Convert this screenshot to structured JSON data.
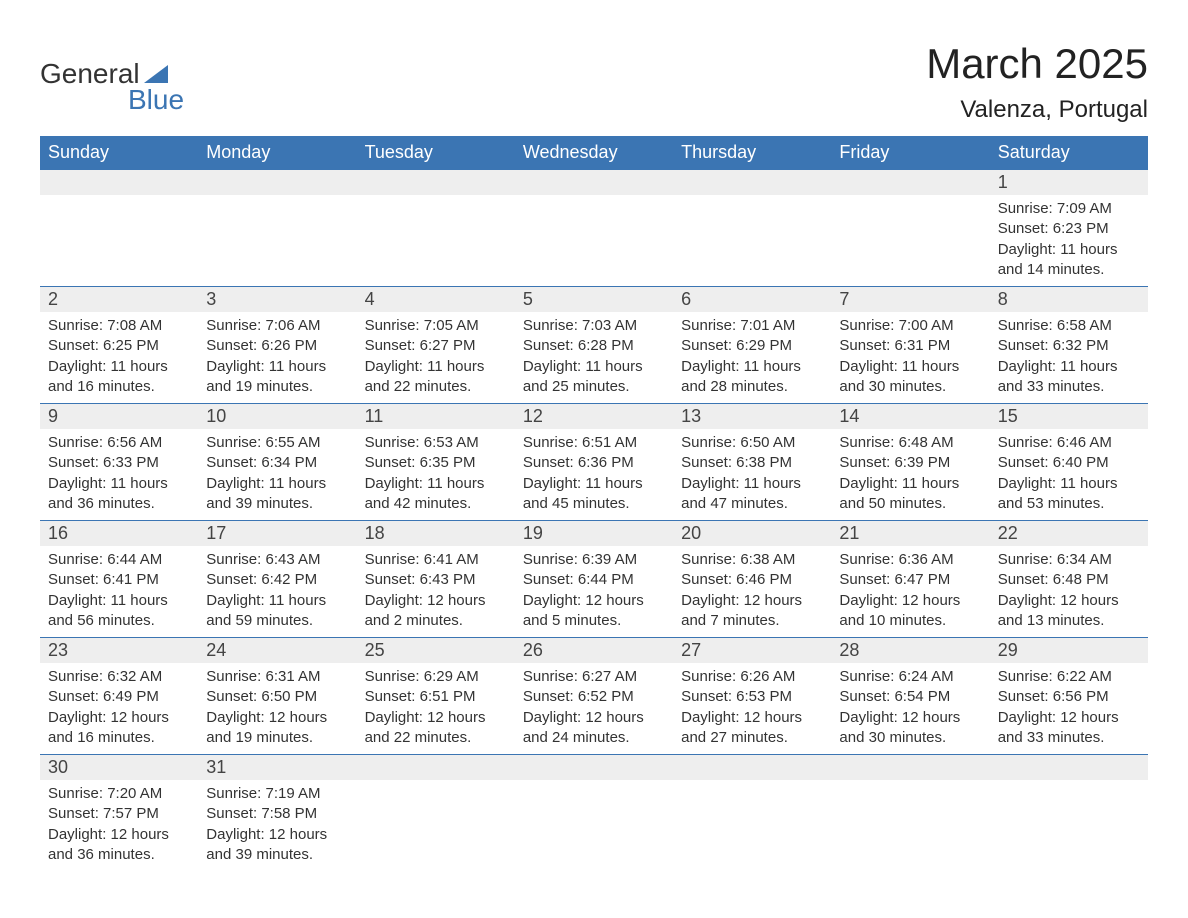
{
  "logo": {
    "word1": "General",
    "word2": "Blue"
  },
  "title": "March 2025",
  "location": "Valenza, Portugal",
  "colors": {
    "header_bg": "#3b75b3",
    "header_text": "#ffffff",
    "daynum_bg": "#eeeeee",
    "border": "#3b75b3",
    "body_text": "#333333",
    "logo_gray": "#333333",
    "logo_blue": "#3b75b3"
  },
  "weekdays": [
    "Sunday",
    "Monday",
    "Tuesday",
    "Wednesday",
    "Thursday",
    "Friday",
    "Saturday"
  ],
  "weeks": [
    [
      null,
      null,
      null,
      null,
      null,
      null,
      {
        "n": "1",
        "sr": "7:09 AM",
        "ss": "6:23 PM",
        "dl": "11 hours and 14 minutes."
      }
    ],
    [
      {
        "n": "2",
        "sr": "7:08 AM",
        "ss": "6:25 PM",
        "dl": "11 hours and 16 minutes."
      },
      {
        "n": "3",
        "sr": "7:06 AM",
        "ss": "6:26 PM",
        "dl": "11 hours and 19 minutes."
      },
      {
        "n": "4",
        "sr": "7:05 AM",
        "ss": "6:27 PM",
        "dl": "11 hours and 22 minutes."
      },
      {
        "n": "5",
        "sr": "7:03 AM",
        "ss": "6:28 PM",
        "dl": "11 hours and 25 minutes."
      },
      {
        "n": "6",
        "sr": "7:01 AM",
        "ss": "6:29 PM",
        "dl": "11 hours and 28 minutes."
      },
      {
        "n": "7",
        "sr": "7:00 AM",
        "ss": "6:31 PM",
        "dl": "11 hours and 30 minutes."
      },
      {
        "n": "8",
        "sr": "6:58 AM",
        "ss": "6:32 PM",
        "dl": "11 hours and 33 minutes."
      }
    ],
    [
      {
        "n": "9",
        "sr": "6:56 AM",
        "ss": "6:33 PM",
        "dl": "11 hours and 36 minutes."
      },
      {
        "n": "10",
        "sr": "6:55 AM",
        "ss": "6:34 PM",
        "dl": "11 hours and 39 minutes."
      },
      {
        "n": "11",
        "sr": "6:53 AM",
        "ss": "6:35 PM",
        "dl": "11 hours and 42 minutes."
      },
      {
        "n": "12",
        "sr": "6:51 AM",
        "ss": "6:36 PM",
        "dl": "11 hours and 45 minutes."
      },
      {
        "n": "13",
        "sr": "6:50 AM",
        "ss": "6:38 PM",
        "dl": "11 hours and 47 minutes."
      },
      {
        "n": "14",
        "sr": "6:48 AM",
        "ss": "6:39 PM",
        "dl": "11 hours and 50 minutes."
      },
      {
        "n": "15",
        "sr": "6:46 AM",
        "ss": "6:40 PM",
        "dl": "11 hours and 53 minutes."
      }
    ],
    [
      {
        "n": "16",
        "sr": "6:44 AM",
        "ss": "6:41 PM",
        "dl": "11 hours and 56 minutes."
      },
      {
        "n": "17",
        "sr": "6:43 AM",
        "ss": "6:42 PM",
        "dl": "11 hours and 59 minutes."
      },
      {
        "n": "18",
        "sr": "6:41 AM",
        "ss": "6:43 PM",
        "dl": "12 hours and 2 minutes."
      },
      {
        "n": "19",
        "sr": "6:39 AM",
        "ss": "6:44 PM",
        "dl": "12 hours and 5 minutes."
      },
      {
        "n": "20",
        "sr": "6:38 AM",
        "ss": "6:46 PM",
        "dl": "12 hours and 7 minutes."
      },
      {
        "n": "21",
        "sr": "6:36 AM",
        "ss": "6:47 PM",
        "dl": "12 hours and 10 minutes."
      },
      {
        "n": "22",
        "sr": "6:34 AM",
        "ss": "6:48 PM",
        "dl": "12 hours and 13 minutes."
      }
    ],
    [
      {
        "n": "23",
        "sr": "6:32 AM",
        "ss": "6:49 PM",
        "dl": "12 hours and 16 minutes."
      },
      {
        "n": "24",
        "sr": "6:31 AM",
        "ss": "6:50 PM",
        "dl": "12 hours and 19 minutes."
      },
      {
        "n": "25",
        "sr": "6:29 AM",
        "ss": "6:51 PM",
        "dl": "12 hours and 22 minutes."
      },
      {
        "n": "26",
        "sr": "6:27 AM",
        "ss": "6:52 PM",
        "dl": "12 hours and 24 minutes."
      },
      {
        "n": "27",
        "sr": "6:26 AM",
        "ss": "6:53 PM",
        "dl": "12 hours and 27 minutes."
      },
      {
        "n": "28",
        "sr": "6:24 AM",
        "ss": "6:54 PM",
        "dl": "12 hours and 30 minutes."
      },
      {
        "n": "29",
        "sr": "6:22 AM",
        "ss": "6:56 PM",
        "dl": "12 hours and 33 minutes."
      }
    ],
    [
      {
        "n": "30",
        "sr": "7:20 AM",
        "ss": "7:57 PM",
        "dl": "12 hours and 36 minutes."
      },
      {
        "n": "31",
        "sr": "7:19 AM",
        "ss": "7:58 PM",
        "dl": "12 hours and 39 minutes."
      },
      null,
      null,
      null,
      null,
      null
    ]
  ],
  "labels": {
    "sunrise": "Sunrise: ",
    "sunset": "Sunset: ",
    "daylight": "Daylight: "
  }
}
